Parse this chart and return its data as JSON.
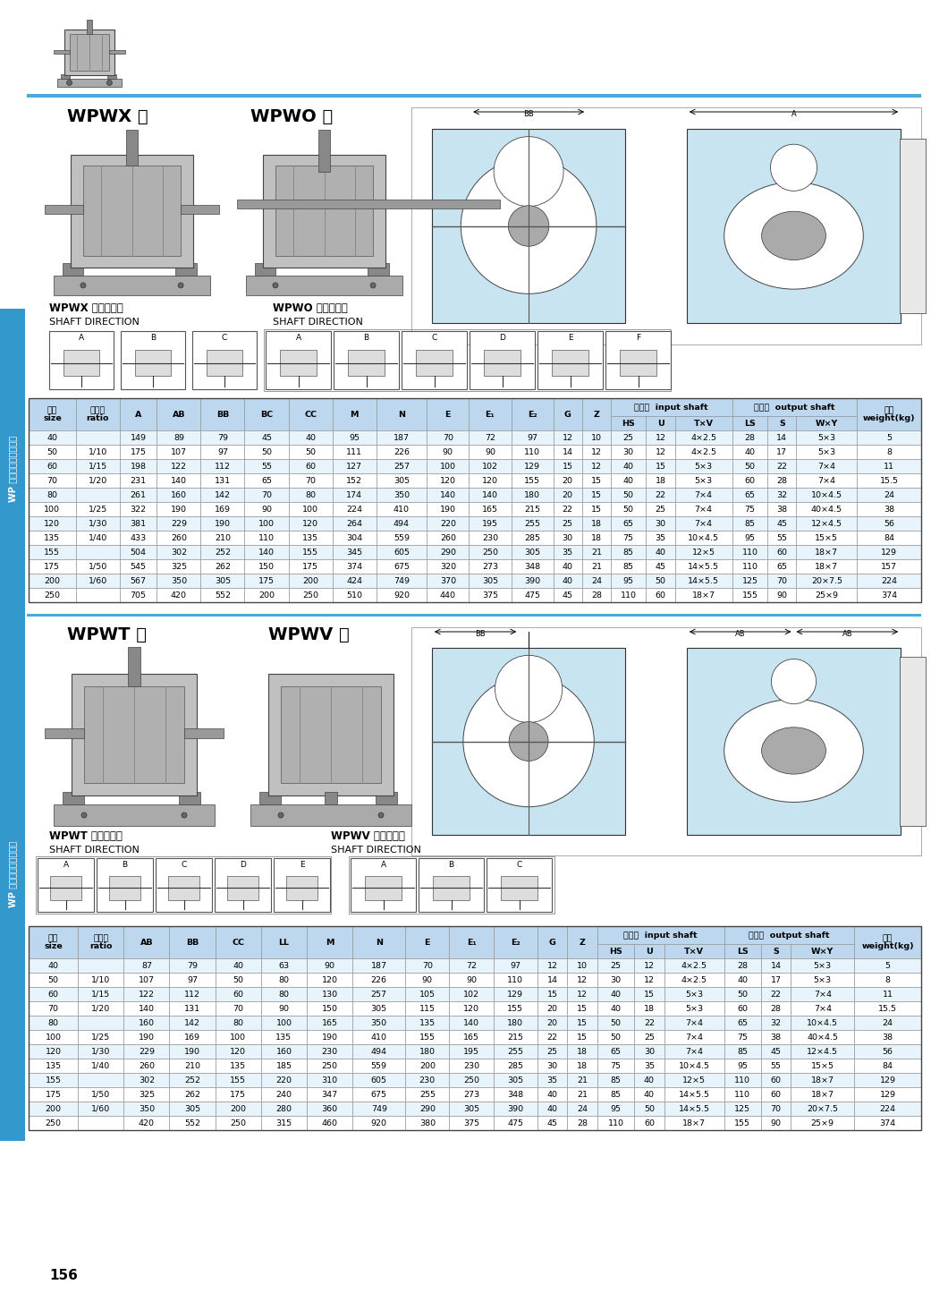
{
  "page_number": "156",
  "blue_line_color": "#4AABDB",
  "sidebar_color": "#3399CC",
  "header_bg": "#BDD7EE",
  "subheader_bg": "#DDEEFF",
  "row_bg_light": "#E8F4FB",
  "row_bg_white": "#FFFFFF",
  "table_border": "#999999",
  "text_black": "#000000",
  "s1_label1": "WPWX 型",
  "s1_label2": "WPWO 型",
  "s1_shaft1_cn": "WPWX 轴指向表示",
  "s1_shaft1_en": "SHAFT DIRECTION",
  "s1_shaft2_cn": "WPWO 轴指向表示",
  "s1_shaft2_en": "SHAFT DIRECTION",
  "s2_label1": "WPWT 型",
  "s2_label2": "WPWV 型",
  "s2_shaft1_cn": "WPWT 轴指向表示",
  "s2_shaft1_en": "SHAFT DIRECTION",
  "s2_shaft2_cn": "WPWV 轴指向表示",
  "s2_shaft2_en": "SHAFT DIRECTION",
  "sidebar_text": "WP 系列蛇杆蛇开减速器",
  "t1_single_cols": [
    "A",
    "AB",
    "BB",
    "BC",
    "CC",
    "M",
    "N",
    "E",
    "E₁",
    "E₂",
    "G",
    "Z"
  ],
  "t1_inp_sub": [
    "HS",
    "U",
    "T×V"
  ],
  "t1_out_sub": [
    "LS",
    "S",
    "W×Y"
  ],
  "t2_single_cols": [
    "AB",
    "BB",
    "CC",
    "LL",
    "M",
    "N",
    "E",
    "E₁",
    "E₂",
    "G",
    "Z"
  ],
  "t2_inp_sub": [
    "HS",
    "U",
    "T×V"
  ],
  "t2_out_sub": [
    "LS",
    "S",
    "W×Y"
  ],
  "table1_data": [
    [
      "40",
      "",
      "149",
      "89",
      "79",
      "45",
      "40",
      "95",
      "187",
      "70",
      "72",
      "97",
      "12",
      "10",
      "25",
      "12",
      "4×2.5",
      "28",
      "14",
      "5×3",
      "5"
    ],
    [
      "50",
      "1/10",
      "175",
      "107",
      "97",
      "50",
      "50",
      "111",
      "226",
      "90",
      "90",
      "110",
      "14",
      "12",
      "30",
      "12",
      "4×2.5",
      "40",
      "17",
      "5×3",
      "8"
    ],
    [
      "60",
      "1/15",
      "198",
      "122",
      "112",
      "55",
      "60",
      "127",
      "257",
      "100",
      "102",
      "129",
      "15",
      "12",
      "40",
      "15",
      "5×3",
      "50",
      "22",
      "7×4",
      "11"
    ],
    [
      "70",
      "1/20",
      "231",
      "140",
      "131",
      "65",
      "70",
      "152",
      "305",
      "120",
      "120",
      "155",
      "20",
      "15",
      "40",
      "18",
      "5×3",
      "60",
      "28",
      "7×4",
      "15.5"
    ],
    [
      "80",
      "",
      "261",
      "160",
      "142",
      "70",
      "80",
      "174",
      "350",
      "140",
      "140",
      "180",
      "20",
      "15",
      "50",
      "22",
      "7×4",
      "65",
      "32",
      "10×4.5",
      "24"
    ],
    [
      "100",
      "1/25",
      "322",
      "190",
      "169",
      "90",
      "100",
      "224",
      "410",
      "190",
      "165",
      "215",
      "22",
      "15",
      "50",
      "25",
      "7×4",
      "75",
      "38",
      "40×4.5",
      "38"
    ],
    [
      "120",
      "1/30",
      "381",
      "229",
      "190",
      "100",
      "120",
      "264",
      "494",
      "220",
      "195",
      "255",
      "25",
      "18",
      "65",
      "30",
      "7×4",
      "85",
      "45",
      "12×4.5",
      "56"
    ],
    [
      "135",
      "1/40",
      "433",
      "260",
      "210",
      "110",
      "135",
      "304",
      "559",
      "260",
      "230",
      "285",
      "30",
      "18",
      "75",
      "35",
      "10×4.5",
      "95",
      "55",
      "15×5",
      "84"
    ],
    [
      "155",
      "",
      "504",
      "302",
      "252",
      "140",
      "155",
      "345",
      "605",
      "290",
      "250",
      "305",
      "35",
      "21",
      "85",
      "40",
      "12×5",
      "110",
      "60",
      "18×7",
      "129"
    ],
    [
      "175",
      "1/50",
      "545",
      "325",
      "262",
      "150",
      "175",
      "374",
      "675",
      "320",
      "273",
      "348",
      "40",
      "21",
      "85",
      "45",
      "14×5.5",
      "110",
      "65",
      "18×7",
      "157"
    ],
    [
      "200",
      "1/60",
      "567",
      "350",
      "305",
      "175",
      "200",
      "424",
      "749",
      "370",
      "305",
      "390",
      "40",
      "24",
      "95",
      "50",
      "14×5.5",
      "125",
      "70",
      "20×7.5",
      "224"
    ],
    [
      "250",
      "",
      "705",
      "420",
      "552",
      "200",
      "250",
      "510",
      "920",
      "440",
      "375",
      "475",
      "45",
      "28",
      "110",
      "60",
      "18×7",
      "155",
      "90",
      "25×9",
      "374"
    ]
  ],
  "table2_data": [
    [
      "40",
      "",
      "87",
      "79",
      "40",
      "63",
      "90",
      "187",
      "70",
      "72",
      "97",
      "12",
      "10",
      "25",
      "12",
      "4×2.5",
      "28",
      "14",
      "5×3",
      "5"
    ],
    [
      "50",
      "1/10",
      "107",
      "97",
      "50",
      "80",
      "120",
      "226",
      "90",
      "90",
      "110",
      "14",
      "12",
      "30",
      "12",
      "4×2.5",
      "40",
      "17",
      "5×3",
      "8"
    ],
    [
      "60",
      "1/15",
      "122",
      "112",
      "60",
      "80",
      "130",
      "257",
      "105",
      "102",
      "129",
      "15",
      "12",
      "40",
      "15",
      "5×3",
      "50",
      "22",
      "7×4",
      "11"
    ],
    [
      "70",
      "1/20",
      "140",
      "131",
      "70",
      "90",
      "150",
      "305",
      "115",
      "120",
      "155",
      "20",
      "15",
      "40",
      "18",
      "5×3",
      "60",
      "28",
      "7×4",
      "15.5"
    ],
    [
      "80",
      "",
      "160",
      "142",
      "80",
      "100",
      "165",
      "350",
      "135",
      "140",
      "180",
      "20",
      "15",
      "50",
      "22",
      "7×4",
      "65",
      "32",
      "10×4.5",
      "24"
    ],
    [
      "100",
      "1/25",
      "190",
      "169",
      "100",
      "135",
      "190",
      "410",
      "155",
      "165",
      "215",
      "22",
      "15",
      "50",
      "25",
      "7×4",
      "75",
      "38",
      "40×4.5",
      "38"
    ],
    [
      "120",
      "1/30",
      "229",
      "190",
      "120",
      "160",
      "230",
      "494",
      "180",
      "195",
      "255",
      "25",
      "18",
      "65",
      "30",
      "7×4",
      "85",
      "45",
      "12×4.5",
      "56"
    ],
    [
      "135",
      "1/40",
      "260",
      "210",
      "135",
      "185",
      "250",
      "559",
      "200",
      "230",
      "285",
      "30",
      "18",
      "75",
      "35",
      "10×4.5",
      "95",
      "55",
      "15×5",
      "84"
    ],
    [
      "155",
      "",
      "302",
      "252",
      "155",
      "220",
      "310",
      "605",
      "230",
      "250",
      "305",
      "35",
      "21",
      "85",
      "40",
      "12×5",
      "110",
      "60",
      "18×7",
      "129"
    ],
    [
      "175",
      "1/50",
      "325",
      "262",
      "175",
      "240",
      "347",
      "675",
      "255",
      "273",
      "348",
      "40",
      "21",
      "85",
      "40",
      "14×5.5",
      "110",
      "60",
      "18×7",
      "129"
    ],
    [
      "200",
      "1/60",
      "350",
      "305",
      "200",
      "280",
      "360",
      "749",
      "290",
      "305",
      "390",
      "40",
      "24",
      "95",
      "50",
      "14×5.5",
      "125",
      "70",
      "20×7.5",
      "224"
    ],
    [
      "250",
      "",
      "420",
      "552",
      "250",
      "315",
      "460",
      "920",
      "380",
      "375",
      "475",
      "45",
      "28",
      "110",
      "60",
      "18×7",
      "155",
      "90",
      "25×9",
      "374"
    ]
  ]
}
